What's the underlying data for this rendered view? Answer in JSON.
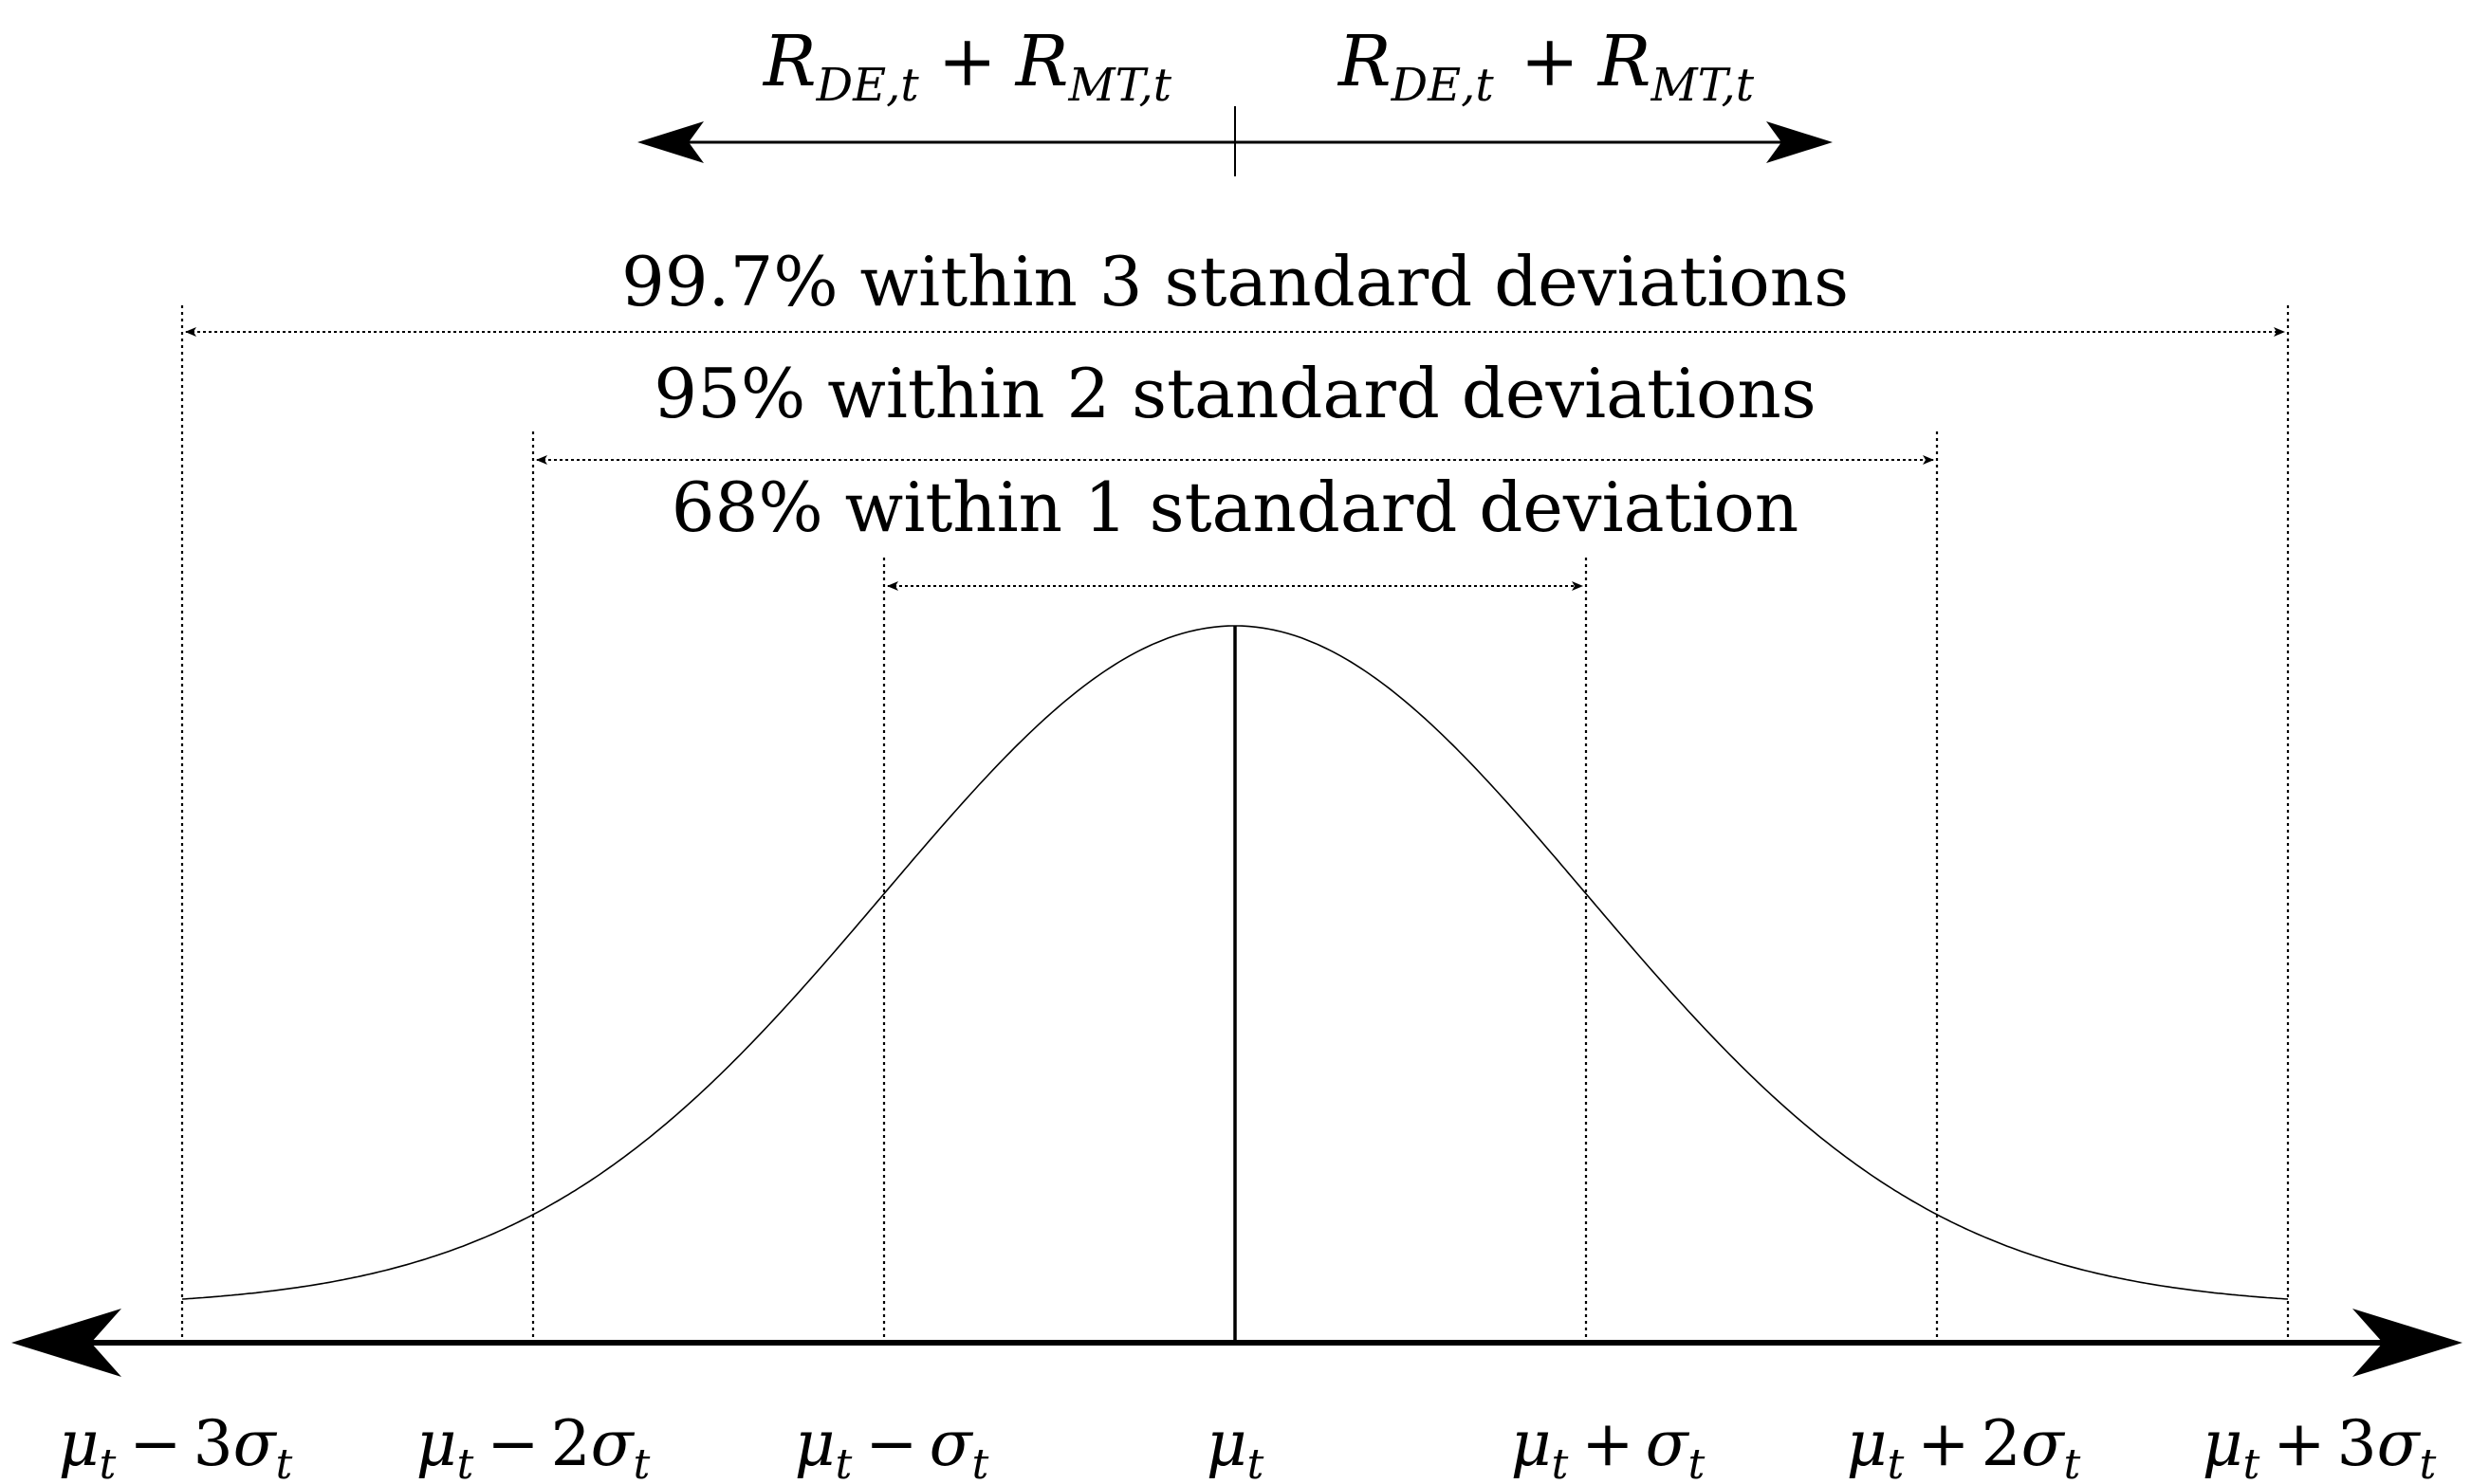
{
  "top_arrows": {
    "left_label": {
      "r1": "R",
      "s1": "DE,t",
      "op": "+",
      "r2": "R",
      "s2": "MT,t"
    },
    "right_label": {
      "r1": "R",
      "s1": "DE,t",
      "op": "+",
      "r2": "R",
      "s2": "MT,t"
    }
  },
  "ranges": [
    {
      "label": "99.7% within 3 standard deviations",
      "sigma": 3
    },
    {
      "label": "95% within 2 standard deviations",
      "sigma": 2
    },
    {
      "label": "68% within 1 standard deviation",
      "sigma": 1
    }
  ],
  "axis_ticks": [
    {
      "sigma": -3,
      "mu": "μ",
      "sub": "t",
      "op": "−",
      "coef": "3",
      "sig": "σ",
      "sigsub": "t"
    },
    {
      "sigma": -2,
      "mu": "μ",
      "sub": "t",
      "op": "−",
      "coef": "2",
      "sig": "σ",
      "sigsub": "t"
    },
    {
      "sigma": -1,
      "mu": "μ",
      "sub": "t",
      "op": "−",
      "coef": "",
      "sig": "σ",
      "sigsub": "t"
    },
    {
      "sigma": 0,
      "mu": "μ",
      "sub": "t",
      "op": "",
      "coef": "",
      "sig": "",
      "sigsub": ""
    },
    {
      "sigma": 1,
      "mu": "μ",
      "sub": "t",
      "op": "+",
      "coef": "",
      "sig": "σ",
      "sigsub": "t"
    },
    {
      "sigma": 2,
      "mu": "μ",
      "sub": "t",
      "op": "+",
      "coef": "2",
      "sig": "σ",
      "sigsub": "t"
    },
    {
      "sigma": 3,
      "mu": "μ",
      "sub": "t",
      "op": "+",
      "coef": "3",
      "sig": "σ",
      "sigsub": "t"
    }
  ],
  "curve": {
    "type": "normal",
    "range_sigma": [
      -3,
      3
    ]
  }
}
